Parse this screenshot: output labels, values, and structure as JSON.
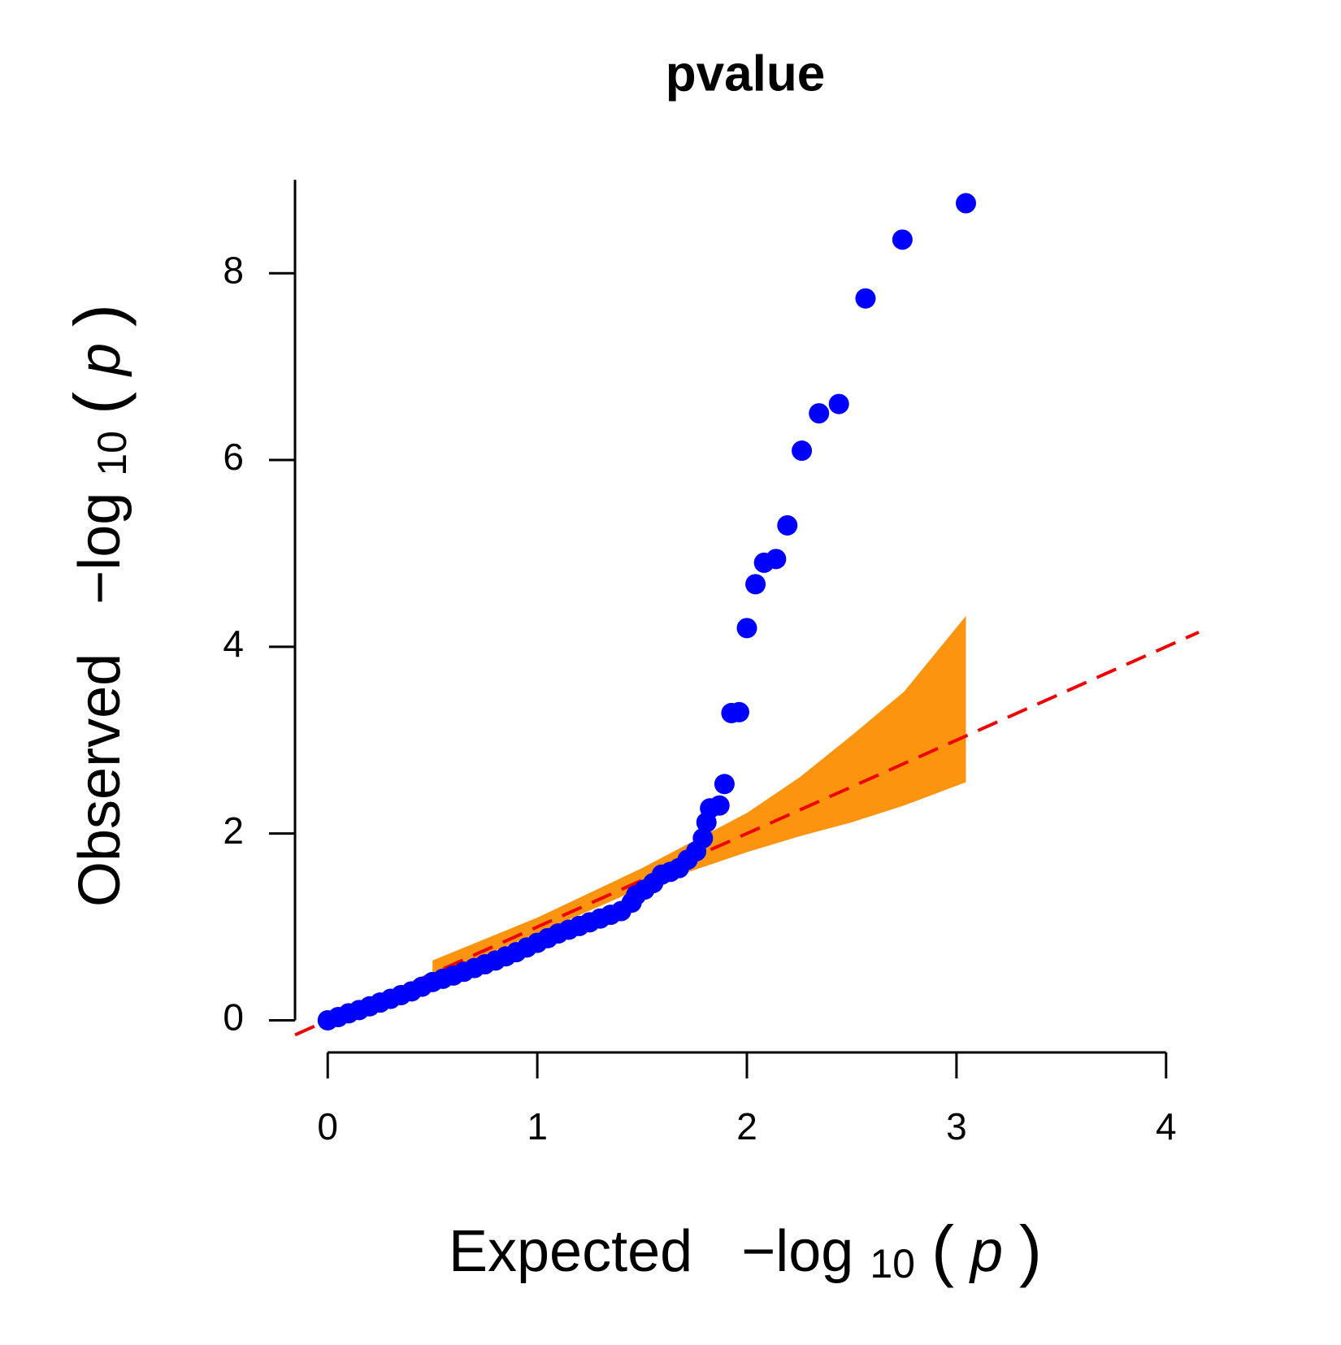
{
  "chart_data": {
    "type": "scatter",
    "title": "pvalue",
    "x_label": [
      "Expected",
      "−log",
      "10",
      "(",
      "p",
      ")"
    ],
    "y_label": [
      "Observed",
      "−log",
      "10",
      "(",
      "p",
      ")"
    ],
    "xlim": [
      -0.156,
      4.156
    ],
    "ylim": [
      -0.156,
      9.0
    ],
    "xticks": [
      0,
      1,
      2,
      3,
      4
    ],
    "yticks": [
      0,
      2,
      4,
      6,
      8
    ],
    "diagonal": true,
    "diagonal_color": "#ee0000",
    "band": {
      "color": "#fd9410",
      "x": [
        0.5,
        1.0,
        1.5,
        2.0,
        2.25,
        2.5,
        2.75,
        3.045
      ],
      "upper": [
        0.64,
        1.1,
        1.63,
        2.22,
        2.6,
        3.05,
        3.52,
        4.33
      ],
      "lower": [
        0.47,
        0.93,
        1.42,
        1.8,
        1.97,
        2.12,
        2.3,
        2.55
      ]
    },
    "series": [
      {
        "color": "#0000ff",
        "x": [
          0,
          0.05,
          0.1,
          0.15,
          0.2,
          0.25,
          0.3,
          0.35,
          0.4,
          0.45,
          0.5,
          0.55,
          0.6,
          0.65,
          0.7,
          0.75,
          0.8,
          0.85,
          0.9,
          0.95,
          1.0,
          1.05,
          1.1,
          1.15,
          1.2,
          1.25,
          1.3,
          1.35,
          1.4,
          1.45,
          1.471,
          1.512,
          1.553,
          1.594,
          1.635,
          1.676,
          1.717,
          1.758,
          1.79,
          1.807,
          1.824,
          1.869,
          1.893,
          1.926,
          1.963,
          2.0,
          2.041,
          2.082,
          2.139,
          2.193,
          2.262,
          2.344,
          2.439,
          2.566,
          2.742,
          3.045
        ],
        "values": [
          0,
          0.035,
          0.075,
          0.11,
          0.15,
          0.19,
          0.23,
          0.27,
          0.31,
          0.36,
          0.41,
          0.445,
          0.48,
          0.52,
          0.56,
          0.6,
          0.64,
          0.685,
          0.73,
          0.78,
          0.83,
          0.88,
          0.93,
          0.97,
          1.01,
          1.05,
          1.09,
          1.13,
          1.17,
          1.26,
          1.34,
          1.4,
          1.47,
          1.56,
          1.59,
          1.63,
          1.72,
          1.81,
          1.95,
          2.12,
          2.27,
          2.3,
          2.53,
          3.29,
          3.3,
          4.2,
          4.67,
          4.9,
          4.94,
          5.3,
          6.1,
          6.5,
          6.6,
          7.73,
          8.36,
          8.75
        ]
      }
    ]
  }
}
